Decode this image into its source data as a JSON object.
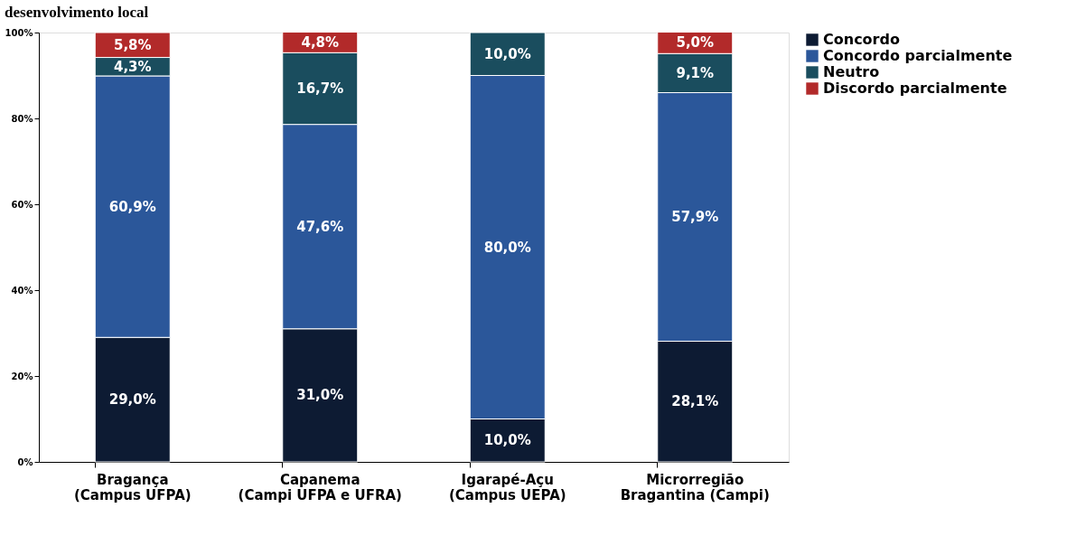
{
  "chart_data": {
    "type": "bar",
    "stacked": true,
    "title": "desenvolvimento local",
    "categories": [
      "Bragança\n(Campus UFPA)",
      "Capanema\n(Campi UFPA e UFRA)",
      "Igarapé-Açu\n(Campus UEPA)",
      "Microrregião\nBragantina (Campi)"
    ],
    "series": [
      {
        "name": "Concordo",
        "color": "#0d1b33",
        "values": [
          29.0,
          31.0,
          10.0,
          28.1
        ],
        "value_labels": [
          "29,0%",
          "31,0%",
          "10,0%",
          "28,1%"
        ]
      },
      {
        "name": "Concordo parcialmente",
        "color": "#2b579a",
        "values": [
          60.9,
          47.6,
          80.0,
          57.9
        ],
        "value_labels": [
          "60,9%",
          "47,6%",
          "80,0%",
          "57,9%"
        ]
      },
      {
        "name": "Neutro",
        "color": "#1a4d5e",
        "values": [
          4.3,
          16.7,
          10.0,
          9.1
        ],
        "value_labels": [
          "4,3%",
          "16,7%",
          "10,0%",
          "9,1%"
        ]
      },
      {
        "name": "Discordo parcialmente",
        "color": "#b22a2a",
        "values": [
          5.8,
          4.8,
          null,
          5.0
        ],
        "value_labels": [
          "5,8%",
          "4,8%",
          null,
          "5,0%"
        ]
      }
    ],
    "ylim": [
      0,
      100
    ],
    "yticks": [
      {
        "value": 0,
        "label": "0%"
      },
      {
        "value": 20,
        "label": "20%"
      },
      {
        "value": 40,
        "label": "40%"
      },
      {
        "value": 60,
        "label": "60%"
      },
      {
        "value": 80,
        "label": "80%"
      },
      {
        "value": 100,
        "label": "100%"
      }
    ],
    "grid": false,
    "legend": "right"
  }
}
